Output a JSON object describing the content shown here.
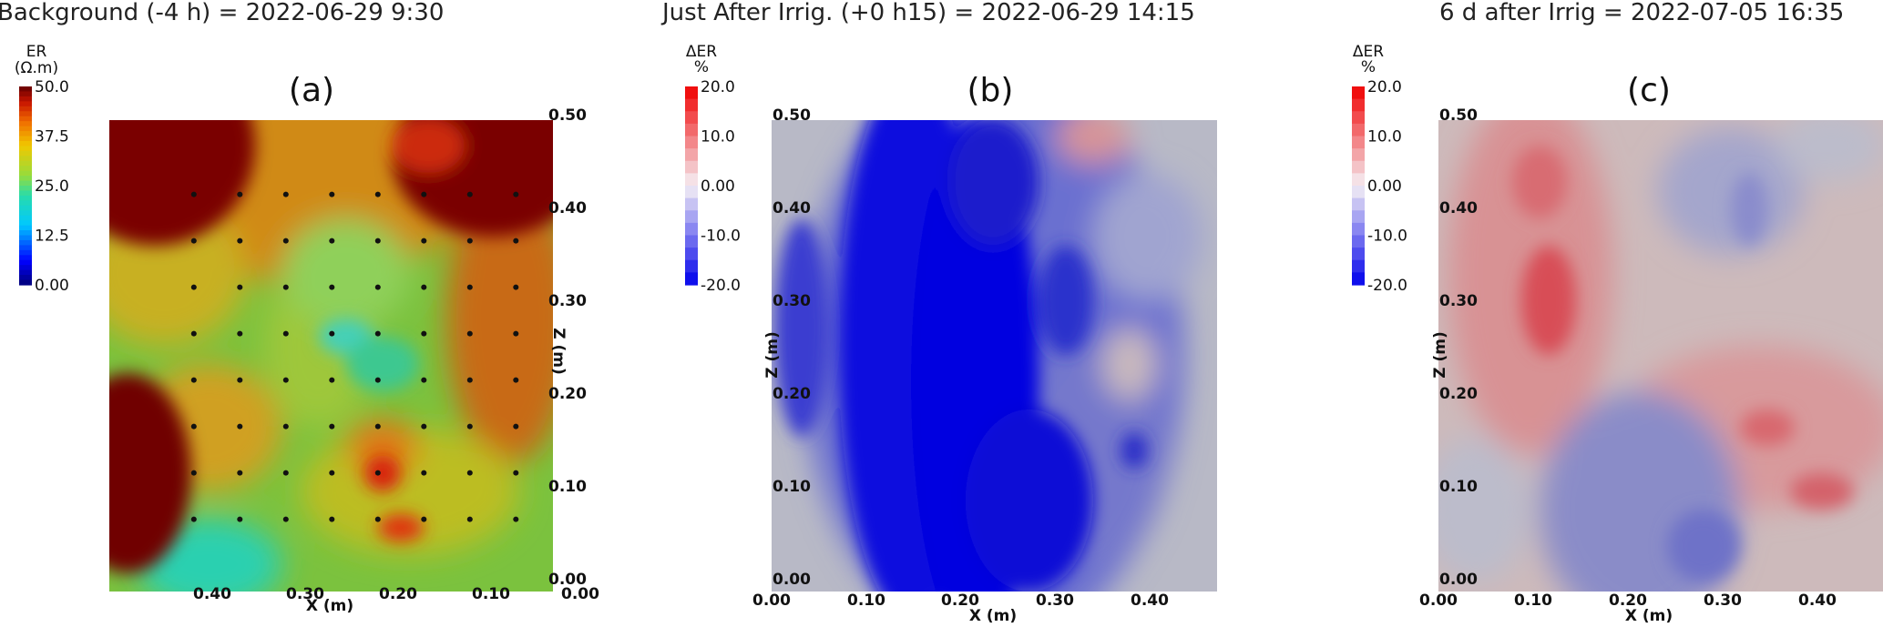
{
  "chart_data": [
    {
      "type": "heatmap",
      "title": "Background (-4 h) = 2022-06-29 9:30",
      "panel_label": "(a)",
      "xlabel": "X (m)",
      "ylabel": "Z (m)",
      "x_ticks": [
        "0.40",
        "0.30",
        "0.20",
        "0.10",
        "0.00"
      ],
      "y_ticks": [
        "0.50",
        "0.40",
        "0.30",
        "0.20",
        "0.10",
        "0.00"
      ],
      "x_axis_reversed": true,
      "colorbar": {
        "title_line1": "ER",
        "title_line2": "(Ω.m)",
        "ticks": [
          "50.0",
          "37.5",
          "25.0",
          "12.5",
          "0.00"
        ],
        "range": [
          0,
          50
        ],
        "colormap": "jet"
      },
      "electrodes": {
        "x": [
          0.42,
          0.37,
          0.32,
          0.27,
          0.22,
          0.17,
          0.12,
          0.07
        ],
        "z": [
          0.42,
          0.37,
          0.32,
          0.27,
          0.22,
          0.17,
          0.12,
          0.07
        ]
      }
    },
    {
      "type": "heatmap",
      "title": "Just After Irrig. (+0 h15) = 2022-06-29 14:15",
      "panel_label": "(b)",
      "xlabel": "X (m)",
      "ylabel": "Z (m)",
      "x_ticks": [
        "0.00",
        "0.10",
        "0.20",
        "0.30",
        "0.40"
      ],
      "y_ticks": [
        "0.50",
        "0.40",
        "0.30",
        "0.20",
        "0.10",
        "0.00"
      ],
      "colorbar": {
        "title_line1": "ΔER",
        "title_line2": "%",
        "ticks": [
          "20.0",
          "10.0",
          "0.00",
          "-10.0",
          "-20.0"
        ],
        "range": [
          -20,
          20
        ],
        "colormap": "blue-white-red"
      }
    },
    {
      "type": "heatmap",
      "title": "6 d after Irrig = 2022-07-05 16:35",
      "panel_label": "(c)",
      "xlabel": "X (m)",
      "ylabel": "Z (m)",
      "x_ticks": [
        "0.00",
        "0.10",
        "0.20",
        "0.30",
        "0.40"
      ],
      "y_ticks": [
        "0.50",
        "0.40",
        "0.30",
        "0.20",
        "0.10",
        "0.00"
      ],
      "colorbar": {
        "title_line1": "ΔER",
        "title_line2": "%",
        "ticks": [
          "20.0",
          "10.0",
          "0.00",
          "-10.0",
          "-20.0"
        ],
        "range": [
          -20,
          20
        ],
        "colormap": "blue-white-red"
      }
    }
  ]
}
